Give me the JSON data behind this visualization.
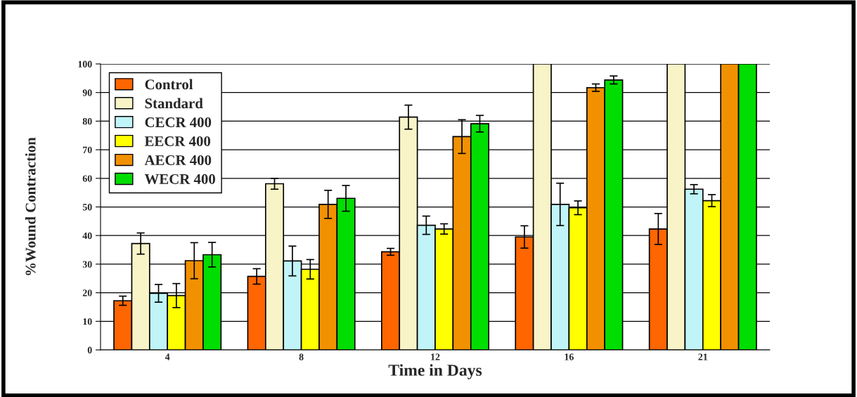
{
  "chart_data": {
    "type": "bar",
    "xlabel": "Time in Days",
    "ylabel": "%Wound Contraction",
    "categories": [
      "4",
      "8",
      "12",
      "16",
      "21"
    ],
    "series": [
      {
        "name": "Control",
        "color": "#ff6600",
        "values": [
          17.2,
          25.7,
          34.3,
          39.5,
          42.3
        ],
        "errors": [
          1.6,
          2.7,
          1.2,
          3.9,
          5.4
        ]
      },
      {
        "name": "Standard",
        "color": "#f8f4c8",
        "values": [
          37.2,
          58.1,
          81.4,
          100,
          100
        ],
        "errors": [
          3.7,
          1.9,
          4.2,
          null,
          null
        ]
      },
      {
        "name": "CECR 400",
        "color": "#c0f4f8",
        "values": [
          19.8,
          31.1,
          43.6,
          50.9,
          56.2
        ],
        "errors": [
          3.1,
          5.2,
          3.2,
          7.4,
          1.6
        ]
      },
      {
        "name": "EECR 400",
        "color": "#ffff00",
        "values": [
          19.0,
          28.2,
          42.3,
          49.7,
          52.2
        ],
        "errors": [
          4.2,
          3.4,
          1.8,
          2.4,
          2.1
        ]
      },
      {
        "name": "AECR 400",
        "color": "#f29100",
        "values": [
          31.2,
          50.9,
          74.6,
          91.7,
          100
        ],
        "errors": [
          6.3,
          4.9,
          5.9,
          1.3,
          null
        ]
      },
      {
        "name": "WECR 400",
        "color": "#00dd00",
        "values": [
          33.3,
          53.0,
          79.1,
          94.4,
          100
        ],
        "errors": [
          4.3,
          4.5,
          2.9,
          1.4,
          null
        ]
      }
    ],
    "ylim": [
      0,
      100
    ],
    "yticks": [
      0,
      10,
      20,
      30,
      40,
      50,
      60,
      70,
      80,
      90,
      100
    ],
    "grid": "y",
    "legend": "top left"
  }
}
